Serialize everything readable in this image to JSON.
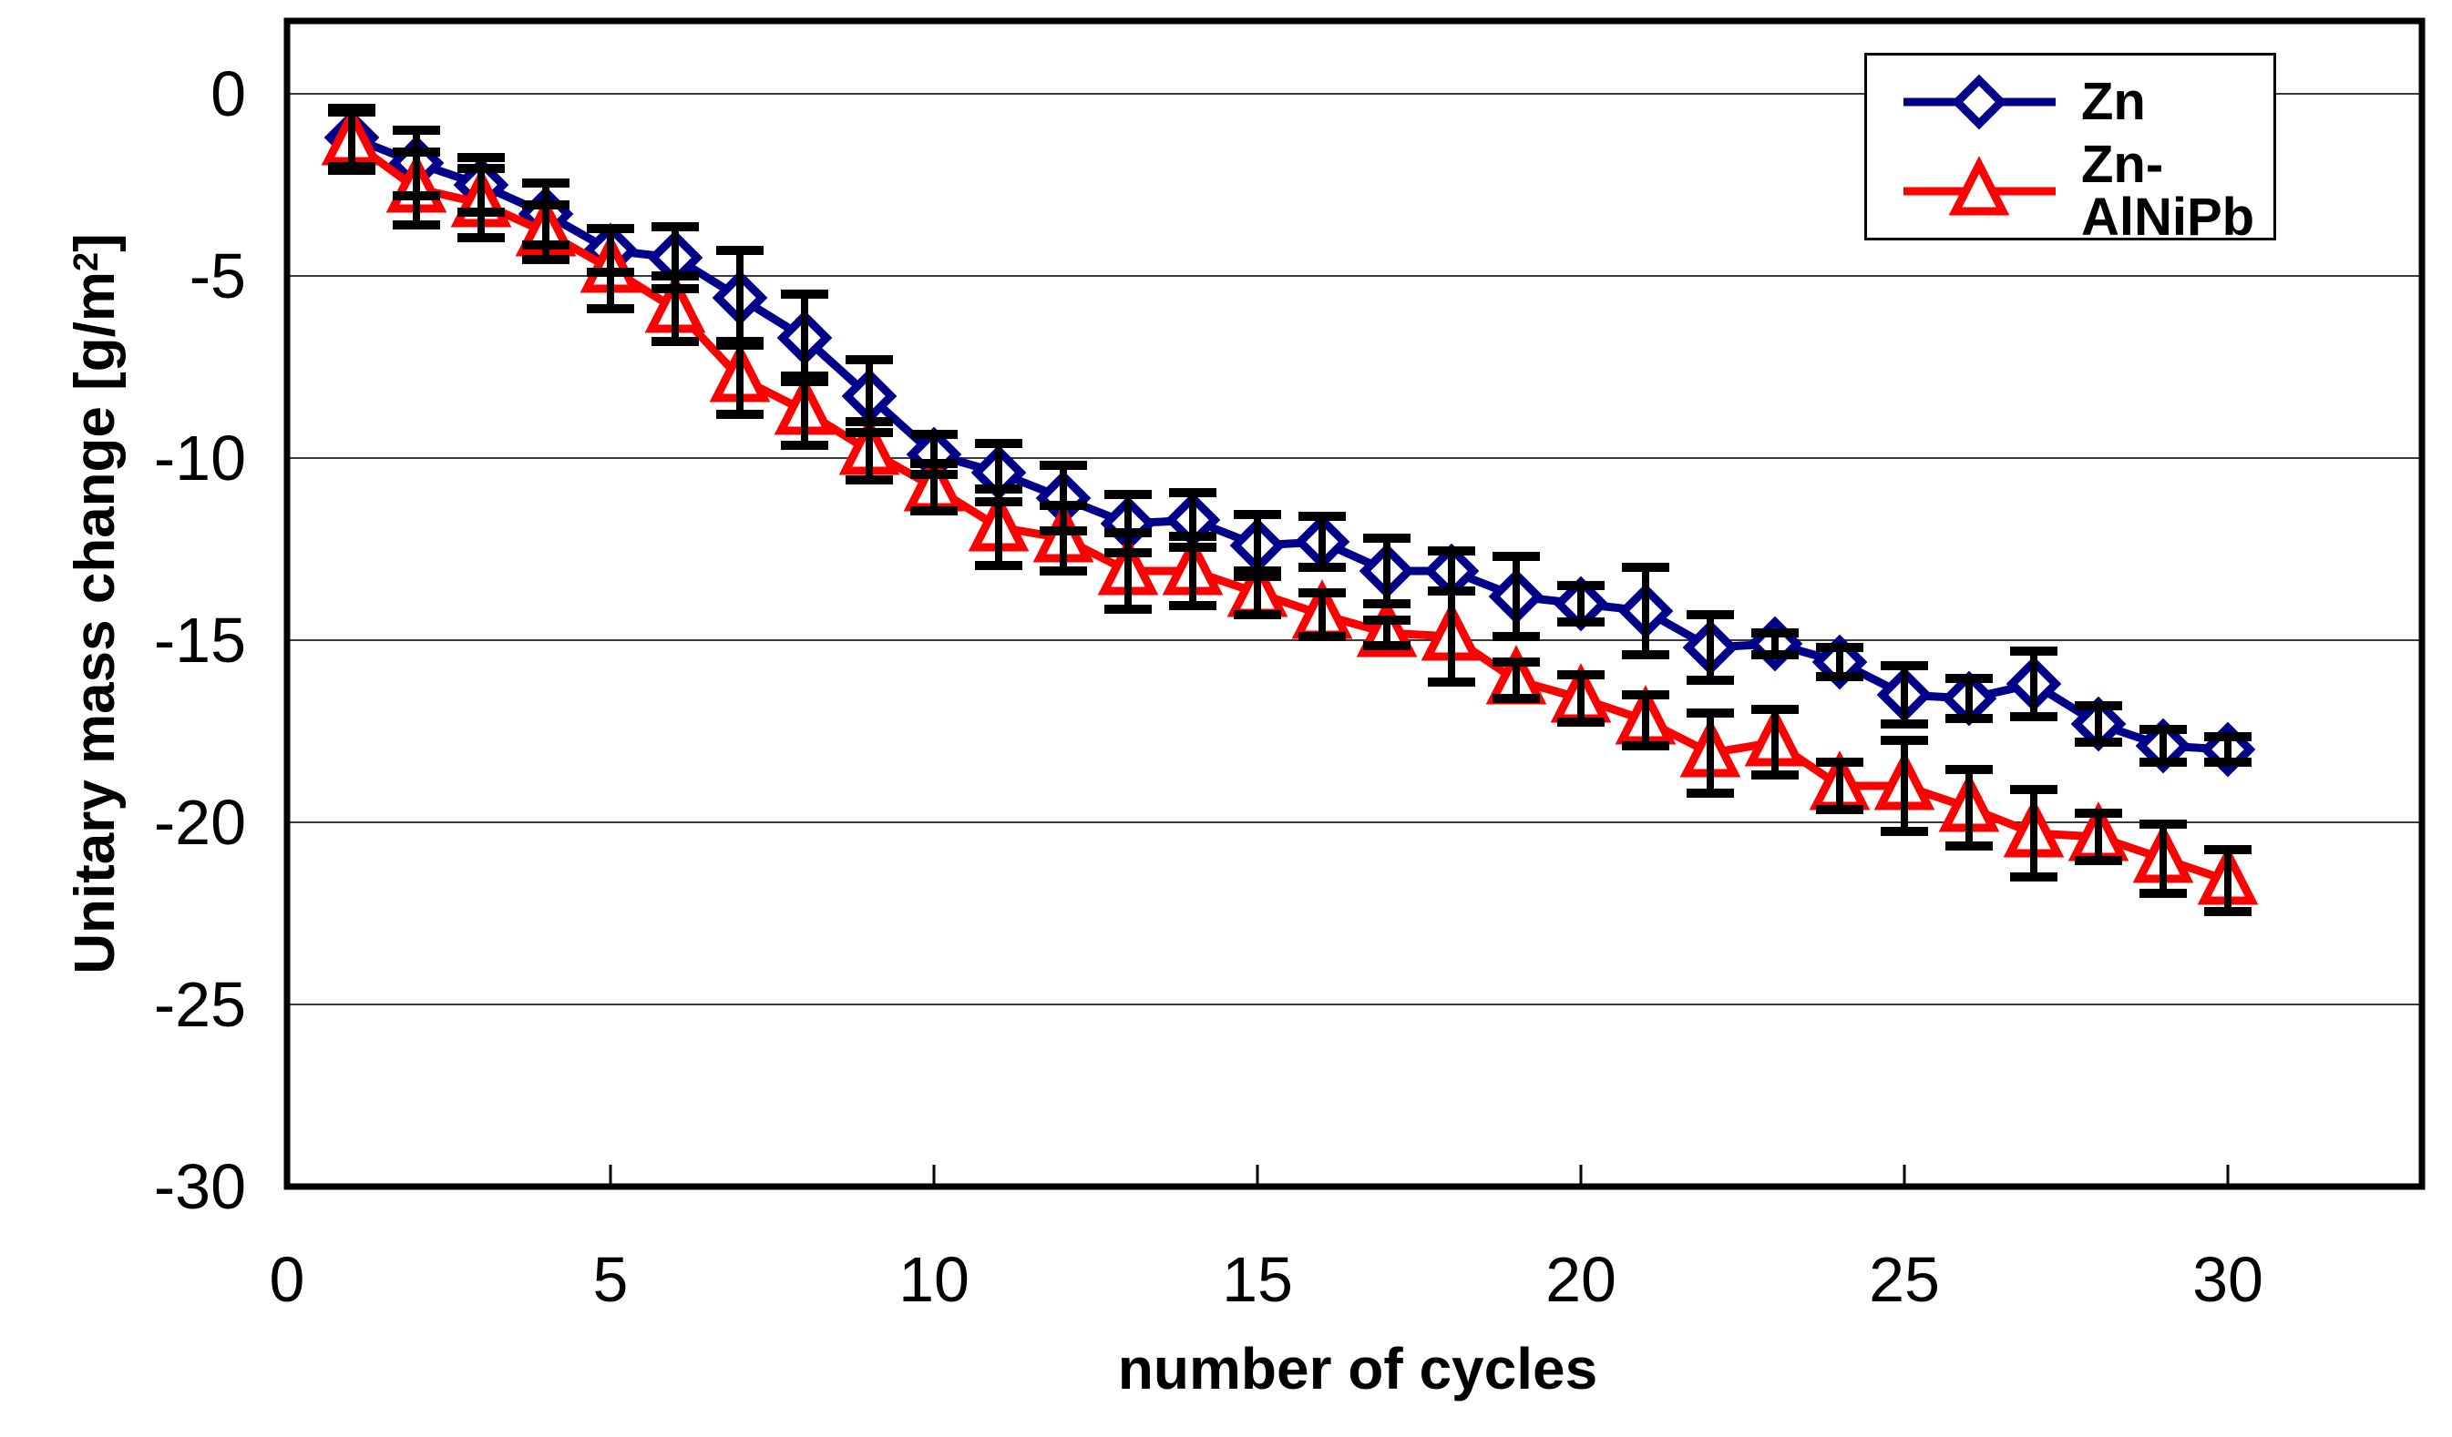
{
  "figure": {
    "background": "#ffffff"
  },
  "y_axis": {
    "title_main": "Unitary mass change [g/m",
    "title_sup": "2",
    "title_close": "]",
    "tick_labels": [
      "0",
      "-5",
      "-10",
      "-15",
      "-20",
      "-25",
      "-30"
    ],
    "tick_values": [
      0,
      -5,
      -10,
      -15,
      -20,
      -25,
      -30
    ]
  },
  "x_axis": {
    "title": "number of cycles",
    "tick_labels": [
      "0",
      "5",
      "10",
      "15",
      "20",
      "25",
      "30"
    ],
    "tick_values": [
      0,
      5,
      10,
      15,
      20,
      25,
      30
    ]
  },
  "legend": {
    "entries": [
      {
        "label": "Zn"
      },
      {
        "label": "Zn-AlNiPb"
      }
    ]
  },
  "chart_data": {
    "type": "line",
    "title": "",
    "xlabel": "number of cycles",
    "ylabel": "Unitary mass change [g/m2]",
    "xlim": [
      0,
      33
    ],
    "ylim": [
      -30,
      2
    ],
    "grid": "horizontal-only",
    "gridline_values": [
      0,
      -5,
      -10,
      -15,
      -20,
      -25
    ],
    "legend_position": "top-right",
    "error_bars": true,
    "colors": {
      "axis": "#000000",
      "grid": "#3a3a3a",
      "zn": "#00008B",
      "zn_alnipb": "#FE0000",
      "error": "#000000"
    },
    "x": [
      1,
      2,
      3,
      4,
      5,
      6,
      7,
      8,
      9,
      10,
      11,
      12,
      13,
      14,
      15,
      16,
      17,
      18,
      19,
      20,
      21,
      22,
      23,
      24,
      25,
      26,
      27,
      28,
      29,
      30
    ],
    "series": [
      {
        "name": "Zn",
        "color": "#00008B",
        "marker": "open-diamond",
        "values": [
          -1.2,
          -1.9,
          -2.5,
          -3.3,
          -4.3,
          -4.5,
          -5.6,
          -6.7,
          -8.3,
          -9.9,
          -10.4,
          -11.1,
          -11.8,
          -11.7,
          -12.4,
          -12.3,
          -13.1,
          -13.1,
          -13.8,
          -14.0,
          -14.2,
          -15.2,
          -15.1,
          -15.6,
          -16.5,
          -16.6,
          -16.2,
          -17.3,
          -17.9,
          -18.0
        ],
        "errors": [
          0.8,
          0.9,
          0.75,
          0.85,
          0.6,
          0.85,
          1.3,
          1.2,
          1.0,
          0.55,
          0.8,
          0.9,
          0.8,
          0.75,
          0.85,
          0.7,
          0.9,
          0.55,
          1.1,
          0.5,
          1.2,
          0.9,
          0.3,
          0.4,
          0.8,
          0.55,
          0.9,
          0.5,
          0.45,
          0.35
        ]
      },
      {
        "name": "Zn-AlNiPb",
        "color": "#FE0000",
        "marker": "open-triangle",
        "values": [
          -1.3,
          -2.6,
          -3.0,
          -3.8,
          -4.8,
          -5.9,
          -7.8,
          -8.7,
          -9.8,
          -10.8,
          -11.9,
          -12.2,
          -13.1,
          -13.1,
          -13.7,
          -14.3,
          -14.8,
          -14.9,
          -16.1,
          -16.6,
          -17.2,
          -18.1,
          -17.8,
          -19.0,
          -19.0,
          -19.6,
          -20.3,
          -20.4,
          -21.0,
          -21.6
        ],
        "errors": [
          0.8,
          1.0,
          0.95,
          0.75,
          1.1,
          0.9,
          1.0,
          0.95,
          0.8,
          0.65,
          1.05,
          0.9,
          1.05,
          0.95,
          0.6,
          0.6,
          0.35,
          1.25,
          0.5,
          0.65,
          0.7,
          1.1,
          0.9,
          0.65,
          1.25,
          1.05,
          1.2,
          0.65,
          0.95,
          0.85
        ]
      }
    ]
  }
}
